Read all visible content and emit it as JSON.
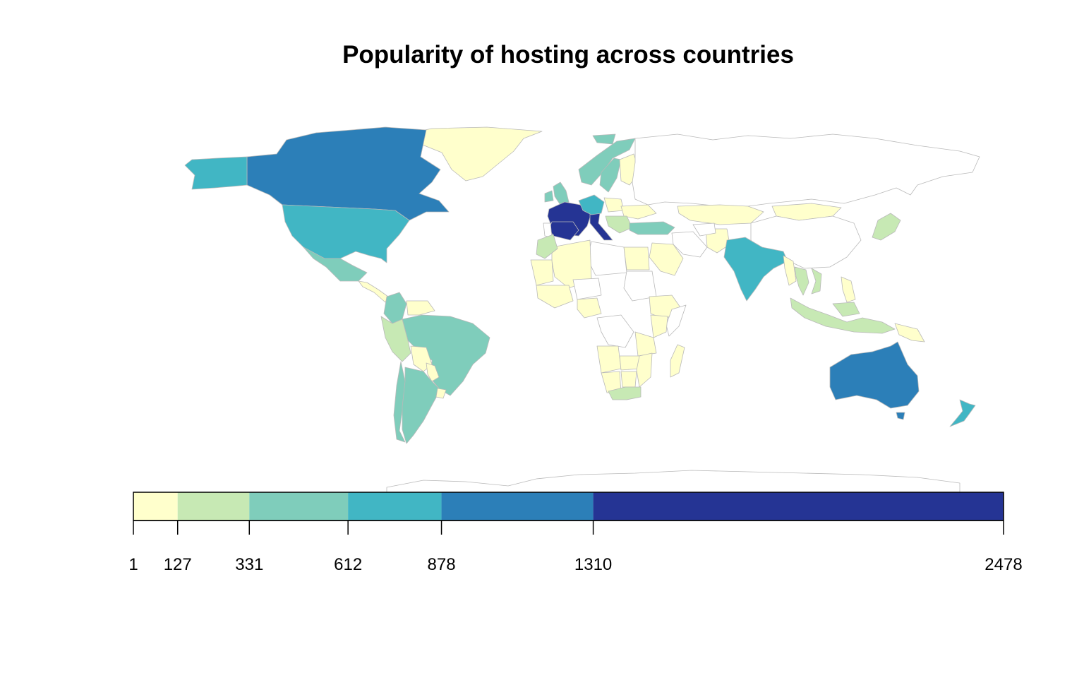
{
  "title": "Popularity of hosting across countries",
  "colors": {
    "no_data": "#ffffff",
    "border": "#b9b9b9",
    "bins": [
      "#ffffcc",
      "#c7e9b4",
      "#7fcdbb",
      "#41b6c4",
      "#2c7fb8",
      "#253494"
    ]
  },
  "legend": {
    "breaks": [
      1,
      127,
      331,
      612,
      878,
      1310,
      2478
    ],
    "labels": [
      "1",
      "127",
      "331",
      "612",
      "878",
      "1310",
      "2478"
    ]
  },
  "chart_data": {
    "type": "choropleth",
    "title": "Popularity of hosting across countries",
    "value_bins": [
      {
        "range": [
          1,
          127
        ],
        "color": "#ffffcc"
      },
      {
        "range": [
          127,
          331
        ],
        "color": "#c7e9b4"
      },
      {
        "range": [
          331,
          612
        ],
        "color": "#7fcdbb"
      },
      {
        "range": [
          612,
          878
        ],
        "color": "#41b6c4"
      },
      {
        "range": [
          878,
          1310
        ],
        "color": "#2c7fb8"
      },
      {
        "range": [
          1310,
          2478
        ],
        "color": "#253494"
      }
    ],
    "regions": [
      {
        "id": "france",
        "bin": 5
      },
      {
        "id": "spain",
        "bin": 5
      },
      {
        "id": "italy",
        "bin": 5
      },
      {
        "id": "canada",
        "bin": 4
      },
      {
        "id": "australia",
        "bin": 4
      },
      {
        "id": "usa",
        "bin": 3
      },
      {
        "id": "alaska",
        "bin": 3
      },
      {
        "id": "india",
        "bin": 3
      },
      {
        "id": "new-zealand",
        "bin": 3
      },
      {
        "id": "germany",
        "bin": 3
      },
      {
        "id": "mexico",
        "bin": 2
      },
      {
        "id": "brazil",
        "bin": 2
      },
      {
        "id": "argentina",
        "bin": 2
      },
      {
        "id": "colombia",
        "bin": 2
      },
      {
        "id": "sweden",
        "bin": 2
      },
      {
        "id": "norway",
        "bin": 2
      },
      {
        "id": "turkey",
        "bin": 2
      },
      {
        "id": "uk",
        "bin": 2
      },
      {
        "id": "south-africa",
        "bin": 1
      },
      {
        "id": "peru",
        "bin": 1
      },
      {
        "id": "thailand",
        "bin": 1
      },
      {
        "id": "indonesia",
        "bin": 1
      },
      {
        "id": "greenland",
        "bin": 0
      },
      {
        "id": "russia",
        "bin": null
      },
      {
        "id": "china",
        "bin": null
      },
      {
        "id": "antarctica",
        "bin": null
      }
    ]
  }
}
